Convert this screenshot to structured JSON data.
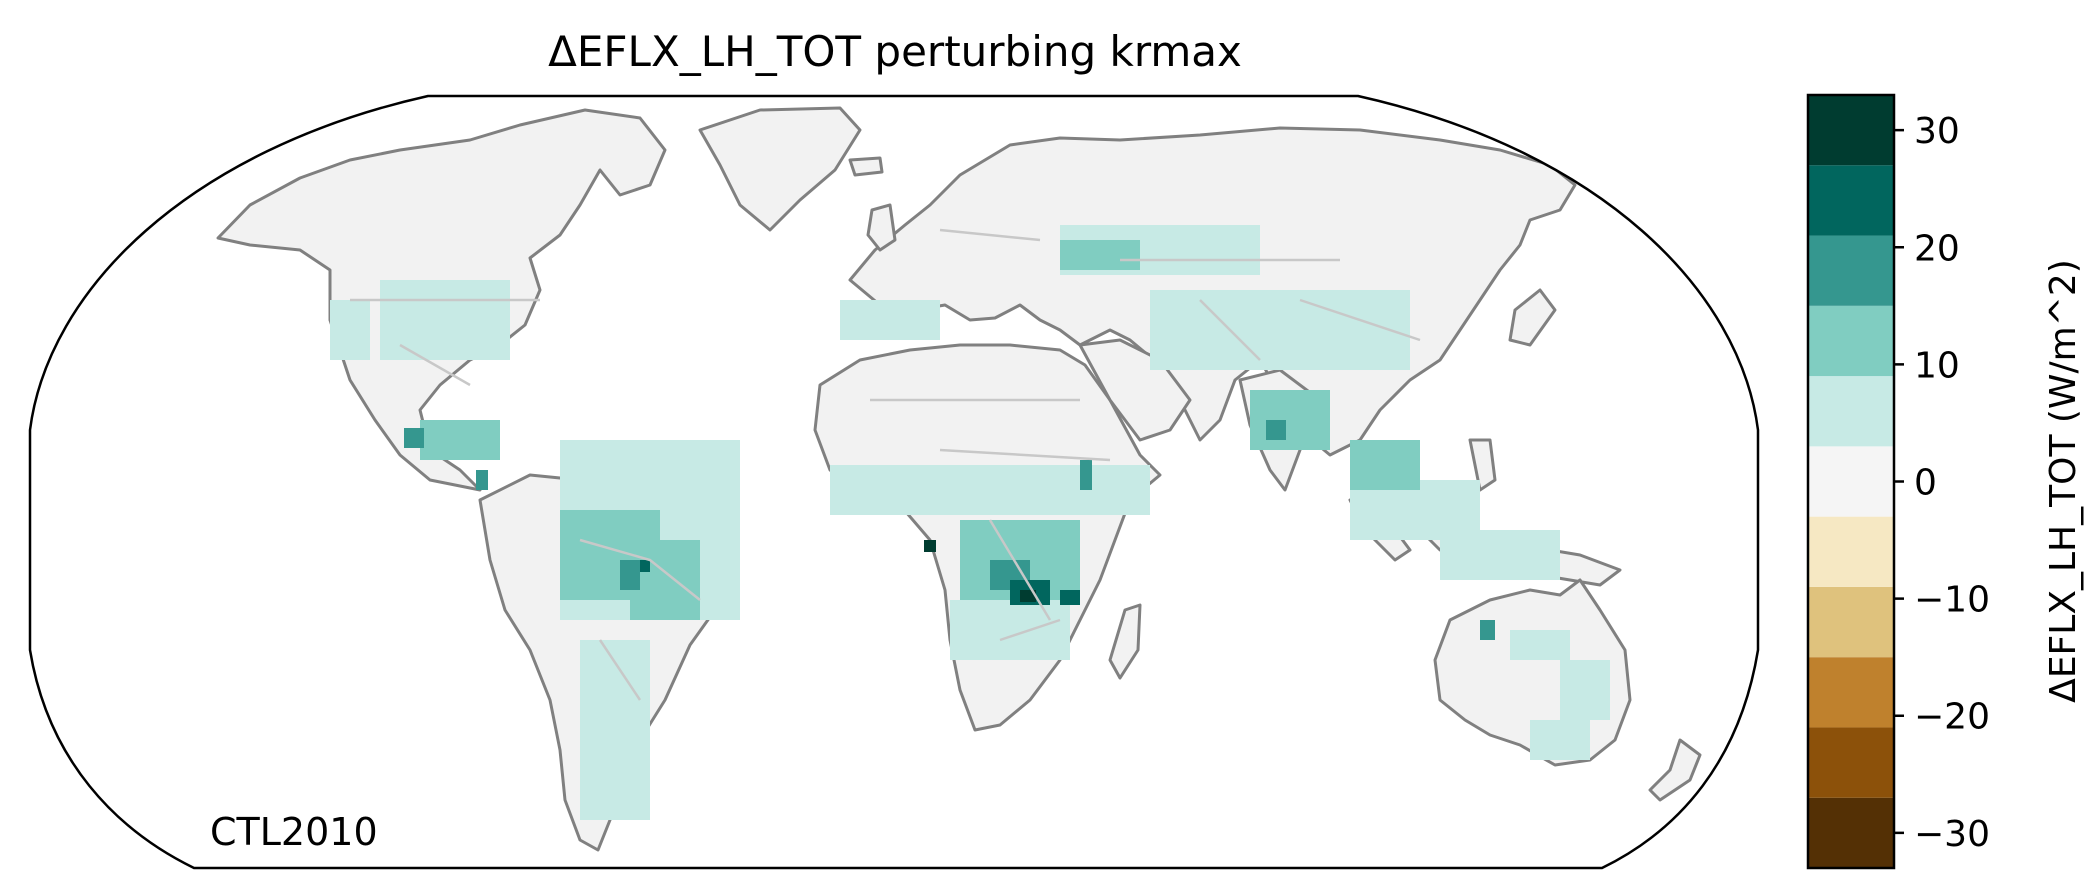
{
  "title": "ΔEFLX_LH_TOT perturbing krmax",
  "map_label": "CTL2010",
  "colorbar": {
    "label": "ΔEFLX_LH_TOT (W/m^2)",
    "tick_labels": [
      "30",
      "20",
      "10",
      "0",
      "−10",
      "−20",
      "−30"
    ],
    "range": [
      -33,
      33
    ],
    "bins": [
      {
        "from": -33,
        "to": -27,
        "color": "#543005"
      },
      {
        "from": -27,
        "to": -21,
        "color": "#8c510a"
      },
      {
        "from": -21,
        "to": -15,
        "color": "#bf812d"
      },
      {
        "from": -15,
        "to": -9,
        "color": "#dfc27d"
      },
      {
        "from": -9,
        "to": -3,
        "color": "#f6e8c3"
      },
      {
        "from": -3,
        "to": 3,
        "color": "#f5f5f5"
      },
      {
        "from": 3,
        "to": 9,
        "color": "#c7eae5"
      },
      {
        "from": 9,
        "to": 15,
        "color": "#80cdc1"
      },
      {
        "from": 15,
        "to": 21,
        "color": "#35978f"
      },
      {
        "from": 21,
        "to": 27,
        "color": "#01665e"
      },
      {
        "from": 27,
        "to": 33,
        "color": "#003c30"
      }
    ]
  },
  "colors": {
    "land": "#f2f2f2",
    "coast": "#808080",
    "borders": "#c8c8c8",
    "frame": "#000000"
  }
}
